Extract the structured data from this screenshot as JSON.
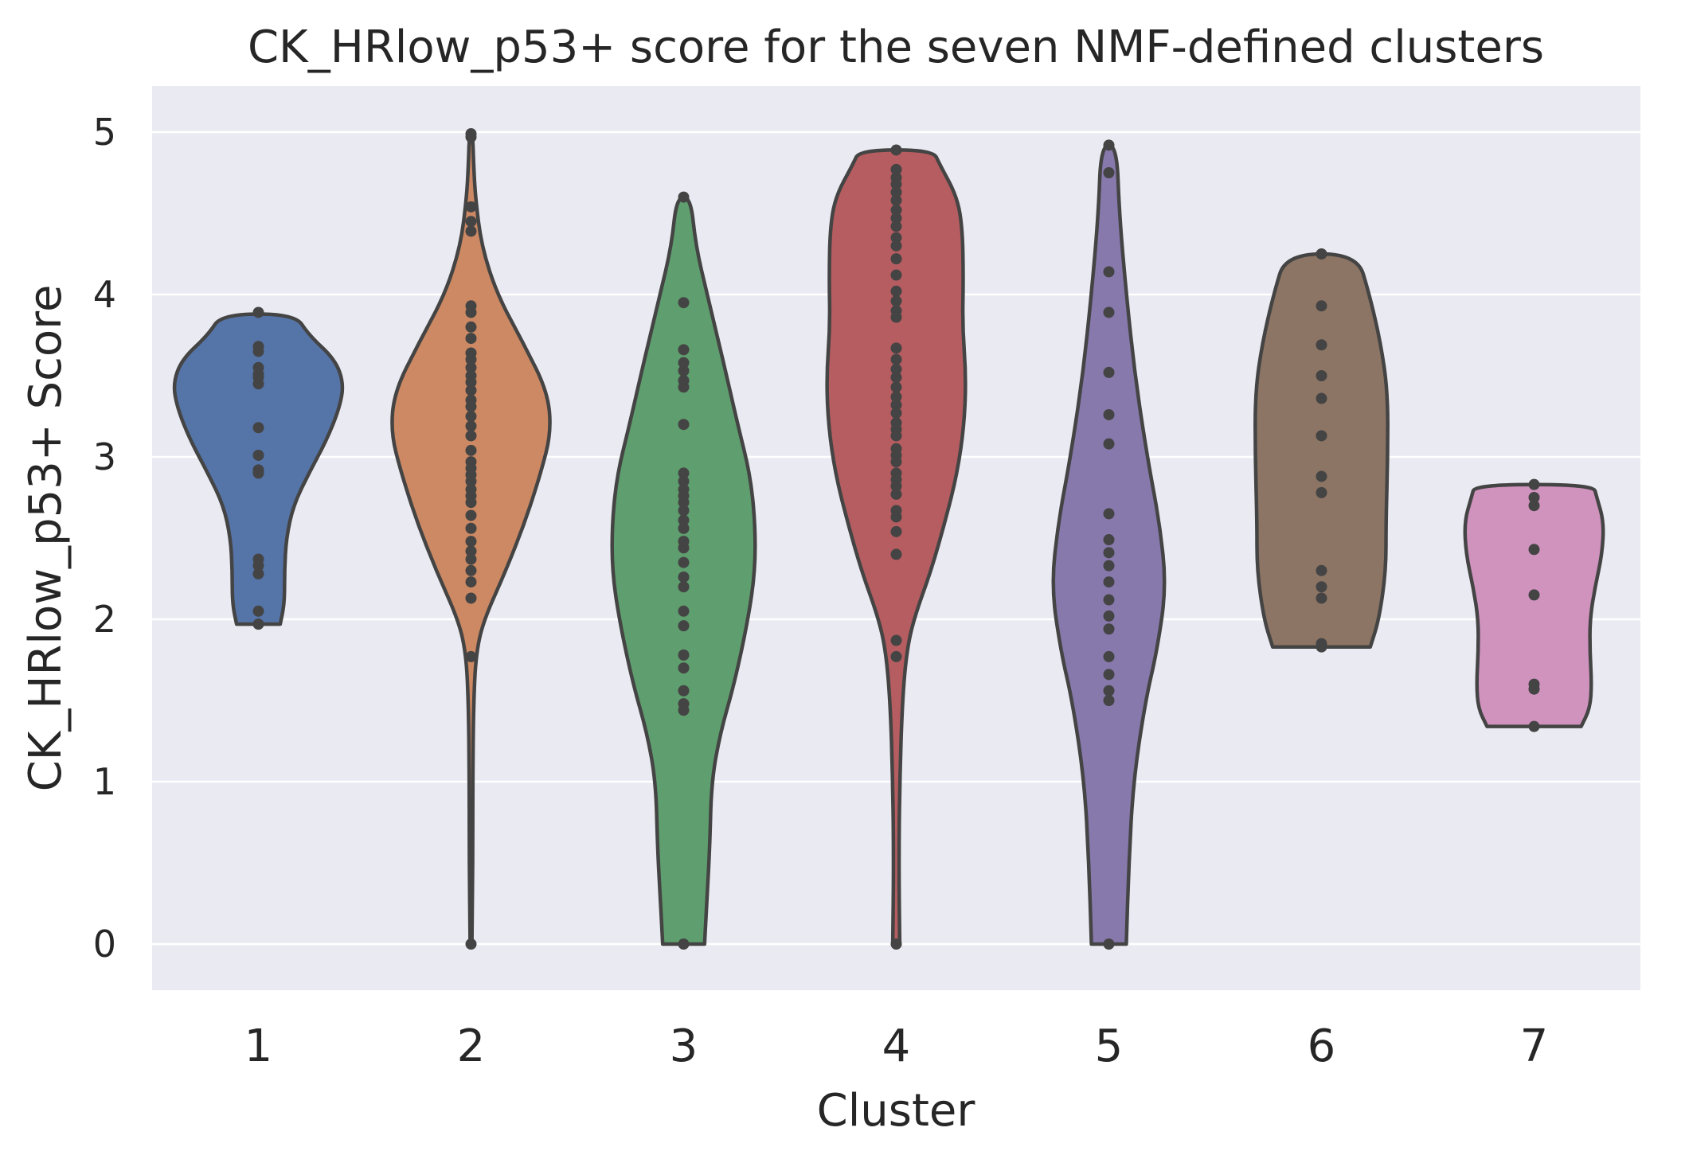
{
  "chart_data": {
    "type": "violin",
    "title": "CK_HRlow_p53+ score for the seven NMF-defined clusters",
    "xlabel": "Cluster",
    "ylabel": "CK_HRlow_p53+ Score",
    "ylim": [
      -0.27,
      5.25
    ],
    "yticks": [
      0,
      1,
      2,
      3,
      4,
      5
    ],
    "grid": true,
    "categories": [
      "1",
      "2",
      "3",
      "4",
      "5",
      "6",
      "7"
    ],
    "violins": [
      {
        "category": "1",
        "color": "#5574a7",
        "min": 1.97,
        "max": 3.88,
        "profile": [
          [
            1.97,
            0.25
          ],
          [
            2.1,
            0.3
          ],
          [
            2.3,
            0.3
          ],
          [
            2.5,
            0.32
          ],
          [
            2.7,
            0.4
          ],
          [
            2.9,
            0.58
          ],
          [
            3.1,
            0.78
          ],
          [
            3.3,
            0.93
          ],
          [
            3.45,
            0.98
          ],
          [
            3.6,
            0.88
          ],
          [
            3.75,
            0.58
          ],
          [
            3.88,
            0.42
          ]
        ],
        "points": [
          1.97,
          2.05,
          2.28,
          2.33,
          2.37,
          2.9,
          2.92,
          3.01,
          3.18,
          3.45,
          3.49,
          3.51,
          3.55,
          3.65,
          3.68,
          3.89
        ]
      },
      {
        "category": "2",
        "color": "#cc8963",
        "min": 0,
        "max": 4.98,
        "profile": [
          [
            0,
            0.01
          ],
          [
            0.5,
            0.02
          ],
          [
            1.0,
            0.02
          ],
          [
            1.5,
            0.03
          ],
          [
            1.8,
            0.06
          ],
          [
            2.0,
            0.15
          ],
          [
            2.3,
            0.4
          ],
          [
            2.6,
            0.62
          ],
          [
            2.9,
            0.8
          ],
          [
            3.15,
            0.92
          ],
          [
            3.4,
            0.88
          ],
          [
            3.7,
            0.6
          ],
          [
            4.0,
            0.3
          ],
          [
            4.3,
            0.12
          ],
          [
            4.6,
            0.05
          ],
          [
            4.8,
            0.03
          ],
          [
            4.98,
            0.02
          ]
        ],
        "points": [
          0,
          1.77,
          2.13,
          2.23,
          2.3,
          2.37,
          2.42,
          2.48,
          2.56,
          2.64,
          2.72,
          2.76,
          2.8,
          2.85,
          2.89,
          2.93,
          2.97,
          3.04,
          3.13,
          3.19,
          3.25,
          3.31,
          3.35,
          3.41,
          3.46,
          3.5,
          3.55,
          3.6,
          3.64,
          3.73,
          3.8,
          3.89,
          3.93,
          4.39,
          4.45,
          4.54,
          4.97,
          4.99
        ]
      },
      {
        "category": "3",
        "color": "#5f9e6e",
        "min": 0,
        "max": 4.6,
        "profile": [
          [
            0,
            0.24
          ],
          [
            0.3,
            0.27
          ],
          [
            0.6,
            0.3
          ],
          [
            1.0,
            0.32
          ],
          [
            1.3,
            0.42
          ],
          [
            1.6,
            0.58
          ],
          [
            2.0,
            0.74
          ],
          [
            2.3,
            0.82
          ],
          [
            2.6,
            0.82
          ],
          [
            2.9,
            0.76
          ],
          [
            3.2,
            0.62
          ],
          [
            3.6,
            0.45
          ],
          [
            4.0,
            0.27
          ],
          [
            4.3,
            0.14
          ],
          [
            4.6,
            0.08
          ]
        ],
        "points": [
          0,
          1.44,
          1.48,
          1.56,
          1.7,
          1.78,
          1.96,
          2.05,
          2.2,
          2.26,
          2.35,
          2.44,
          2.48,
          2.56,
          2.61,
          2.67,
          2.72,
          2.76,
          2.8,
          2.85,
          2.9,
          3.2,
          3.43,
          3.47,
          3.53,
          3.58,
          3.66,
          3.95,
          4.6
        ]
      },
      {
        "category": "4",
        "color": "#b55d60",
        "min": 0,
        "max": 4.89,
        "profile": [
          [
            0,
            0.04
          ],
          [
            0.5,
            0.03
          ],
          [
            1.0,
            0.04
          ],
          [
            1.5,
            0.07
          ],
          [
            1.8,
            0.12
          ],
          [
            2.0,
            0.2
          ],
          [
            2.3,
            0.4
          ],
          [
            2.6,
            0.56
          ],
          [
            2.9,
            0.7
          ],
          [
            3.2,
            0.78
          ],
          [
            3.5,
            0.8
          ],
          [
            3.8,
            0.76
          ],
          [
            4.1,
            0.77
          ],
          [
            4.4,
            0.76
          ],
          [
            4.6,
            0.7
          ],
          [
            4.8,
            0.5
          ],
          [
            4.89,
            0.42
          ]
        ],
        "points": [
          0,
          1.77,
          1.87,
          2.4,
          2.54,
          2.63,
          2.67,
          2.77,
          2.82,
          2.86,
          2.9,
          2.97,
          3.01,
          3.05,
          3.13,
          3.17,
          3.21,
          3.27,
          3.32,
          3.37,
          3.43,
          3.49,
          3.54,
          3.6,
          3.67,
          3.86,
          3.9,
          3.96,
          4.02,
          4.12,
          4.22,
          4.3,
          4.35,
          4.42,
          4.47,
          4.52,
          4.58,
          4.63,
          4.68,
          4.72,
          4.77,
          4.89
        ]
      },
      {
        "category": "5",
        "color": "#8779ac",
        "min": 0,
        "max": 4.92,
        "profile": [
          [
            0,
            0.2
          ],
          [
            0.5,
            0.23
          ],
          [
            1.0,
            0.28
          ],
          [
            1.5,
            0.42
          ],
          [
            1.8,
            0.55
          ],
          [
            2.2,
            0.66
          ],
          [
            2.6,
            0.58
          ],
          [
            3.0,
            0.44
          ],
          [
            3.5,
            0.3
          ],
          [
            4.0,
            0.2
          ],
          [
            4.5,
            0.12
          ],
          [
            4.92,
            0.09
          ]
        ],
        "points": [
          0,
          1.5,
          1.56,
          1.66,
          1.77,
          1.94,
          2.02,
          2.12,
          2.23,
          2.33,
          2.41,
          2.49,
          2.65,
          3.08,
          3.26,
          3.52,
          3.89,
          4.14,
          4.75,
          4.92
        ]
      },
      {
        "category": "6",
        "color": "#8c7564",
        "min": 1.83,
        "max": 4.25,
        "profile": [
          [
            1.83,
            0.56
          ],
          [
            2.0,
            0.66
          ],
          [
            2.3,
            0.74
          ],
          [
            2.6,
            0.74
          ],
          [
            3.0,
            0.76
          ],
          [
            3.4,
            0.76
          ],
          [
            3.7,
            0.68
          ],
          [
            4.0,
            0.55
          ],
          [
            4.25,
            0.41
          ]
        ],
        "points": [
          1.83,
          1.85,
          2.13,
          2.2,
          2.3,
          2.78,
          2.88,
          3.13,
          3.36,
          3.5,
          3.69,
          3.93,
          4.25
        ]
      },
      {
        "category": "7",
        "color": "#d093be",
        "min": 1.34,
        "max": 2.83,
        "profile": [
          [
            1.34,
            0.54
          ],
          [
            1.45,
            0.64
          ],
          [
            1.6,
            0.66
          ],
          [
            1.8,
            0.64
          ],
          [
            2.0,
            0.64
          ],
          [
            2.2,
            0.7
          ],
          [
            2.4,
            0.78
          ],
          [
            2.6,
            0.8
          ],
          [
            2.75,
            0.72
          ],
          [
            2.83,
            0.68
          ]
        ],
        "points": [
          1.34,
          1.57,
          1.6,
          2.15,
          2.43,
          2.7,
          2.75,
          2.83
        ]
      }
    ]
  }
}
